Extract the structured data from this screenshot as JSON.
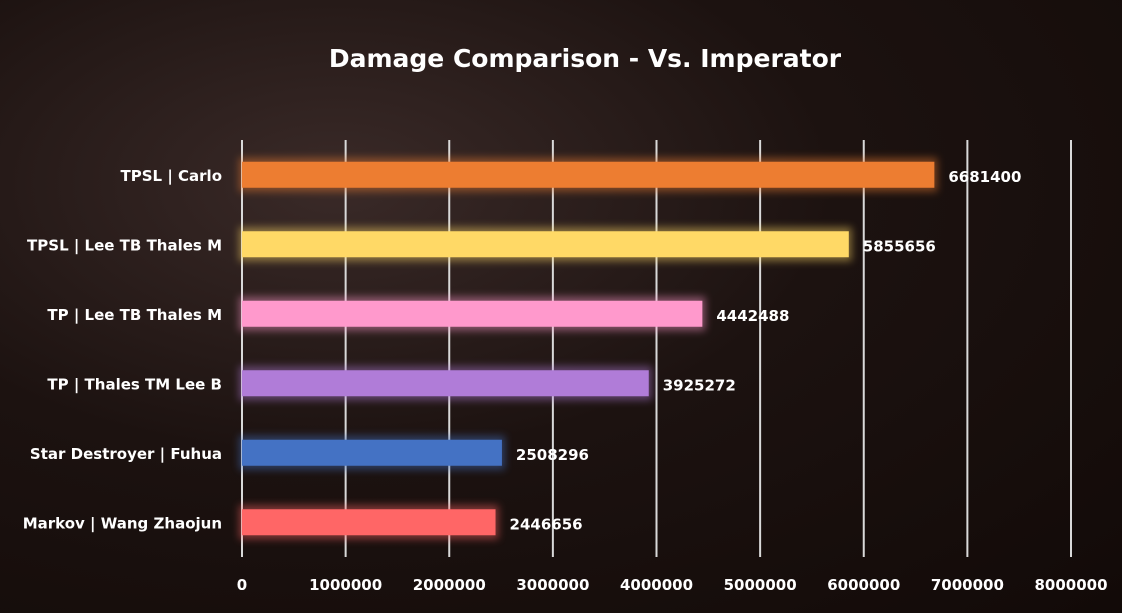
{
  "chart_data": {
    "type": "bar",
    "orientation": "horizontal",
    "title": "Damage Comparison - Vs. Imperator",
    "categories": [
      "TPSL | Carlo",
      "TPSL | Lee TB Thales M",
      "TP | Lee TB Thales M",
      "TP | Thales TM Lee B",
      "Star Destroyer | Fuhua",
      "Markov | Wang Zhaojun"
    ],
    "values": [
      6681400,
      5855656,
      4442488,
      3925272,
      2508296,
      2446656
    ],
    "colors": [
      "#ED7D31",
      "#FFD966",
      "#FF99CC",
      "#B07CD8",
      "#4472C4",
      "#FF6666"
    ],
    "xlim": [
      0,
      8000000
    ],
    "xticks": [
      "0",
      "1000000",
      "2000000",
      "3000000",
      "4000000",
      "5000000",
      "6000000",
      "7000000",
      "8000000"
    ],
    "grid": "vertical",
    "data_labels": true
  }
}
